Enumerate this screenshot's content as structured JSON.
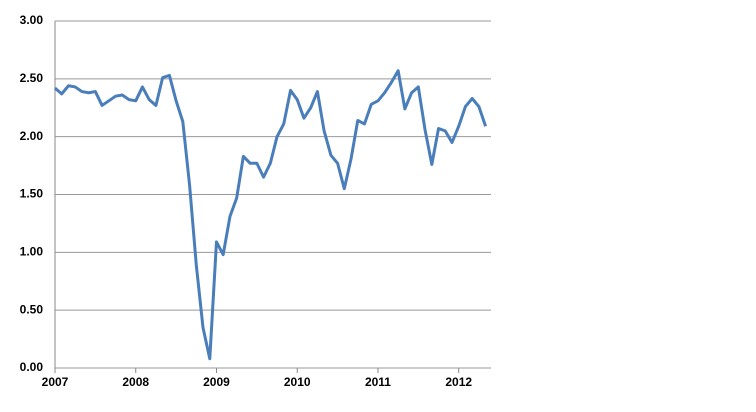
{
  "chart_data": {
    "type": "line",
    "x": [
      2007,
      2007.083,
      2007.167,
      2007.25,
      2007.333,
      2007.417,
      2007.5,
      2007.583,
      2007.667,
      2007.75,
      2007.833,
      2007.917,
      2008,
      2008.083,
      2008.167,
      2008.25,
      2008.333,
      2008.417,
      2008.5,
      2008.583,
      2008.667,
      2008.75,
      2008.833,
      2008.917,
      2009,
      2009.083,
      2009.167,
      2009.25,
      2009.333,
      2009.417,
      2009.5,
      2009.583,
      2009.667,
      2009.75,
      2009.833,
      2009.917,
      2010,
      2010.083,
      2010.167,
      2010.25,
      2010.333,
      2010.417,
      2010.5,
      2010.583,
      2010.667,
      2010.75,
      2010.833,
      2010.917,
      2011,
      2011.083,
      2011.167,
      2011.25,
      2011.333,
      2011.417,
      2011.5,
      2011.583,
      2011.667,
      2011.75,
      2011.833,
      2011.917,
      2012,
      2012.083,
      2012.167,
      2012.25,
      2012.333
    ],
    "series": [
      {
        "color": "#4a7ebb",
        "values": [
          2.42,
          2.37,
          2.44,
          2.43,
          2.39,
          2.38,
          2.39,
          2.27,
          2.31,
          2.35,
          2.36,
          2.32,
          2.31,
          2.43,
          2.32,
          2.27,
          2.51,
          2.53,
          2.31,
          2.13,
          1.58,
          0.89,
          0.35,
          0.08,
          1.09,
          0.98,
          1.31,
          1.47,
          1.83,
          1.77,
          1.77,
          1.65,
          1.77,
          2.0,
          2.11,
          2.4,
          2.32,
          2.16,
          2.25,
          2.39,
          2.05,
          1.84,
          1.77,
          1.55,
          1.81,
          2.14,
          2.11,
          2.28,
          2.31,
          2.38,
          2.47,
          2.57,
          2.24,
          2.38,
          2.43,
          2.06,
          1.76,
          2.07,
          2.05,
          1.95,
          2.09,
          2.26,
          2.33,
          2.26,
          2.09
        ]
      }
    ],
    "xlim": [
      2007,
      2012.4
    ],
    "xticks": [
      2007,
      2008,
      2009,
      2010,
      2011,
      2012
    ],
    "ylim": [
      0,
      3
    ],
    "yticks": [
      {
        "value": 0,
        "label": "0.00"
      },
      {
        "value": 0.5,
        "label": "0.50"
      },
      {
        "value": 1,
        "label": "1.00"
      },
      {
        "value": 1.5,
        "label": "1.50"
      },
      {
        "value": 2,
        "label": "2.00"
      },
      {
        "value": 2.5,
        "label": "2.50"
      },
      {
        "value": 3,
        "label": "3.00"
      }
    ],
    "grid": true
  }
}
